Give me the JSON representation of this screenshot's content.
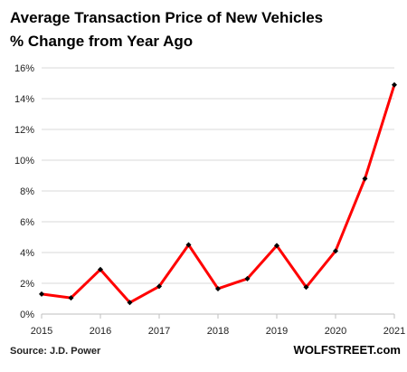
{
  "chart_data": {
    "type": "line",
    "title_lines": [
      "Average Transaction  Price of New Vehicles",
      "% Change from Year Ago"
    ],
    "xlabel": "",
    "ylabel": "",
    "x": [
      2015.0,
      2015.5,
      2016.0,
      2016.5,
      2017.0,
      2017.5,
      2018.0,
      2018.5,
      2019.0,
      2019.5,
      2020.0,
      2020.5,
      2021.0
    ],
    "values": [
      1.3,
      1.05,
      2.9,
      0.75,
      1.8,
      4.5,
      1.65,
      2.3,
      4.45,
      1.75,
      4.1,
      8.8,
      14.9
    ],
    "xlim": [
      2015,
      2021
    ],
    "ylim": [
      0,
      16
    ],
    "x_ticks": [
      {
        "value": 2015,
        "label": "2015"
      },
      {
        "value": 2016,
        "label": "2016"
      },
      {
        "value": 2017,
        "label": "2017"
      },
      {
        "value": 2018,
        "label": "2018"
      },
      {
        "value": 2019,
        "label": "2019"
      },
      {
        "value": 2020,
        "label": "2020"
      },
      {
        "value": 2021,
        "label": "2021"
      }
    ],
    "y_ticks": [
      {
        "value": 0,
        "label": "0%"
      },
      {
        "value": 2,
        "label": "2%"
      },
      {
        "value": 4,
        "label": "4%"
      },
      {
        "value": 6,
        "label": "6%"
      },
      {
        "value": 8,
        "label": "8%"
      },
      {
        "value": 10,
        "label": "10%"
      },
      {
        "value": 12,
        "label": "12%"
      },
      {
        "value": 14,
        "label": "14%"
      },
      {
        "value": 16,
        "label": "16%"
      }
    ],
    "grid": true,
    "legend": "none",
    "colors": {
      "line": "#ff0000",
      "marker": "#000000",
      "grid": "#d9d9d9"
    }
  },
  "source": "Source: J.D. Power",
  "brand": "WOLFSTREET.com"
}
